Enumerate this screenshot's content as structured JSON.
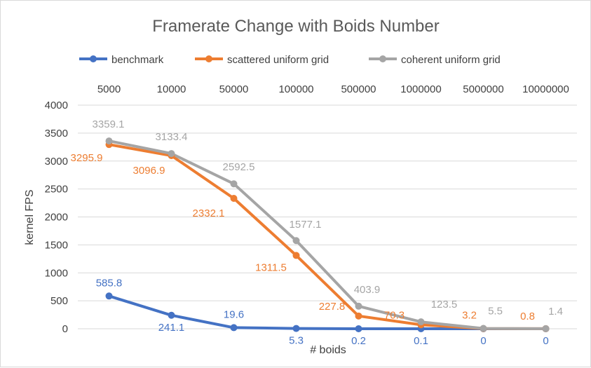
{
  "chart_data": {
    "type": "line",
    "title": "Framerate Change with Boids Number",
    "xlabel": "# boids",
    "ylabel": "kernel FPS",
    "categories": [
      "5000",
      "10000",
      "50000",
      "100000",
      "500000",
      "1000000",
      "5000000",
      "10000000"
    ],
    "ylim": [
      0,
      4000
    ],
    "yticks": [
      "0",
      "500",
      "1000",
      "1500",
      "2000",
      "2500",
      "3000",
      "3500",
      "4000"
    ],
    "grid": true,
    "legend_position": "top",
    "x_axis_labels_position": "top",
    "series": [
      {
        "name": "benchmark",
        "color": "#4472c4",
        "values": [
          585.8,
          241.1,
          19.6,
          5.3,
          0.2,
          0.1,
          0,
          0
        ],
        "labels": [
          "585.8",
          "241.1",
          "19.6",
          "5.3",
          "0.2",
          "0.1",
          "0",
          "0"
        ]
      },
      {
        "name": "scattered uniform grid",
        "color": "#ed7d31",
        "values": [
          3295.9,
          3096.9,
          2332.1,
          1311.5,
          227.8,
          70.3,
          3.2,
          0.8
        ],
        "labels": [
          "3295.9",
          "3096.9",
          "2332.1",
          "1311.5",
          "227.8",
          "70.3",
          "3.2",
          "0.8"
        ]
      },
      {
        "name": "coherent uniform grid",
        "color": "#a5a5a5",
        "values": [
          3359.1,
          3133.4,
          2592.5,
          1577.1,
          403.9,
          123.5,
          5.5,
          1.4
        ],
        "labels": [
          "3359.1",
          "3133.4",
          "2592.5",
          "1577.1",
          "403.9",
          "123.5",
          "5.5",
          "1.4"
        ]
      }
    ],
    "gridline_color": "#d9d9d9"
  }
}
